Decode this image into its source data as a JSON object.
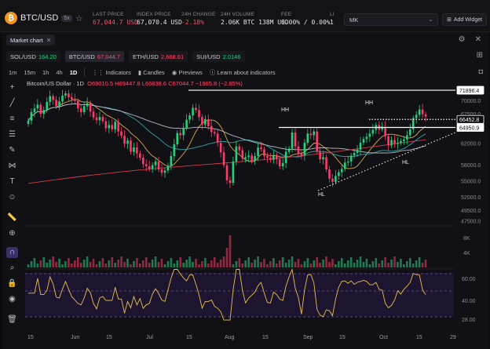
{
  "header": {
    "symbol": "BTC/USD",
    "badge": "5x",
    "stats": [
      {
        "label": "LAST PRICE",
        "value": "67,044.7 USD",
        "color": "red"
      },
      {
        "label": "INDEX PRICE",
        "value": "67,070.4 USD",
        "color": "white"
      },
      {
        "label": "24H CHANGE",
        "value": "-2.18%",
        "color": "red"
      },
      {
        "label": "24H VOLUME",
        "value": "2.06K BTC  138M USD",
        "color": "white"
      },
      {
        "label": "FEE",
        "value": "0.00% / 0.00%",
        "color": "white"
      },
      {
        "label": "LI",
        "value": "1",
        "color": "white"
      }
    ],
    "account": "MK",
    "add_widget": "Add Widget"
  },
  "panel": {
    "tab": "Market chart",
    "quotes": [
      {
        "pair": "SOL/USD",
        "price": "164.20",
        "dir": "up",
        "active": false
      },
      {
        "pair": "BTC/USD",
        "price": "67,044.7",
        "dir": "down",
        "active": true
      },
      {
        "pair": "ETH/USD",
        "price": "2,668.61",
        "dir": "down",
        "active": false
      },
      {
        "pair": "SUI/USD",
        "price": "2.0146",
        "dir": "up",
        "active": false
      }
    ],
    "intervals": [
      "1m",
      "15m",
      "1h",
      "4h",
      "1D"
    ],
    "active_interval": "1D",
    "toolbar": {
      "indicators": "Indicators",
      "candles": "Candles",
      "previews": "Previews",
      "learn": "Learn about indicators"
    }
  },
  "chart_data": {
    "type": "candlestick",
    "title": "Bitcoin/US Dollar · 1D",
    "ohlc": {
      "o": "O69010.5",
      "h": "H69447.8",
      "l": "L66838.6",
      "c": "C67044.7",
      "chg": "−1965.8 (−2.85%)"
    },
    "ylim": [
      47500,
      72500
    ],
    "price_ticks": [
      70000,
      67500,
      62000,
      58000,
      55000,
      52000,
      49500,
      47500
    ],
    "price_tick_labels": [
      "70000.0",
      "67500.0",
      "62000.0",
      "58000.0",
      "55000.0",
      "52000.0",
      "49500.0",
      "47500.0"
    ],
    "price_tags": [
      {
        "price": 71896.4,
        "label": "71896.4",
        "style": "white"
      },
      {
        "price": 66452.8,
        "label": "66452.8",
        "style": "dotted"
      },
      {
        "price": 64950.9,
        "label": "64950.9",
        "style": "white"
      }
    ],
    "x_labels": [
      "15",
      "Jun",
      "15",
      "Jul",
      "15",
      "Aug",
      "15",
      "Sep",
      "15",
      "Oct",
      "15",
      "29"
    ],
    "annotations": [
      "HH",
      "HH",
      "HL",
      "HL"
    ],
    "volume_ticks": [
      "8K",
      "4K"
    ],
    "rsi_ticks": [
      "60.00",
      "40.00",
      "28.00"
    ],
    "closes": [
      66200,
      67800,
      68500,
      69200,
      67500,
      68200,
      69700,
      70800,
      70100,
      68900,
      69800,
      70900,
      71300,
      70600,
      70200,
      69900,
      68500,
      67800,
      68900,
      69500,
      67900,
      66800,
      66300,
      66900,
      66100,
      64800,
      65400,
      64600,
      66000,
      64200,
      63400,
      61900,
      62500,
      60400,
      61200,
      60100,
      59300,
      58100,
      57700,
      57200,
      57900,
      58600,
      57100,
      56500,
      56900,
      57700,
      59600,
      61800,
      63900,
      63500,
      64900,
      66400,
      67200,
      68600,
      68200,
      66900,
      65500,
      66500,
      65200,
      64100,
      63800,
      62100,
      60300,
      57900,
      55100,
      54600,
      58600,
      61400,
      60700,
      59100,
      59400,
      59700,
      58700,
      59600,
      61200,
      60900,
      59600,
      59300,
      58900,
      59800,
      59000,
      57700,
      58300,
      60400,
      61000,
      64000,
      61400,
      60100,
      59700,
      62100,
      63800,
      63500,
      64200,
      60500,
      59000,
      59400,
      57100,
      55400,
      54800,
      55900,
      56600,
      57200,
      58400,
      58600,
      59700,
      60200,
      60800,
      62100,
      62800,
      63200,
      63800,
      64500,
      65400,
      64600,
      65100,
      63300,
      61600,
      62600,
      61900,
      62100,
      62400,
      62700,
      63500,
      64600,
      66700,
      67300,
      68300,
      67400,
      67000
    ]
  }
}
